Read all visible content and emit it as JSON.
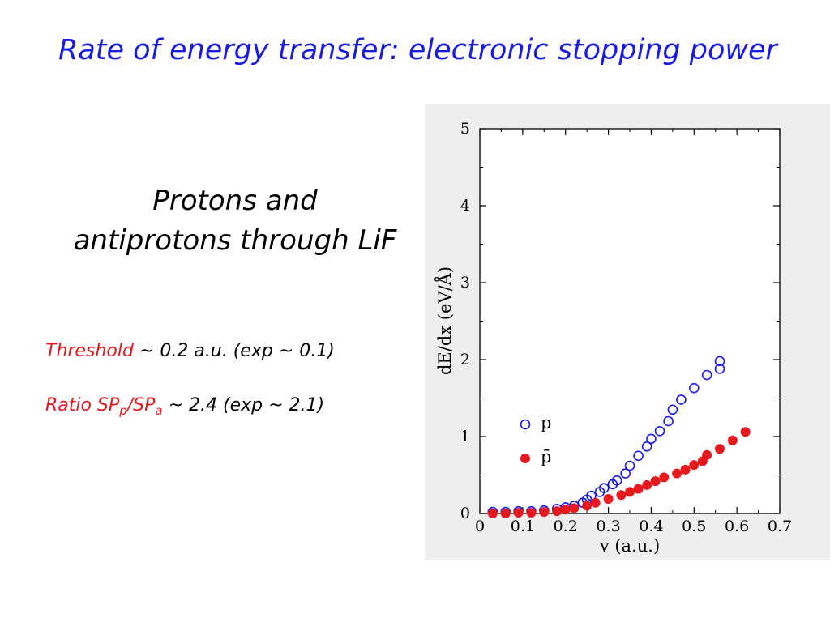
{
  "slide": {
    "title": "Rate of energy transfer: electronic stopping power",
    "subtitle_line1": "Protons and",
    "subtitle_line2": "antiprotons through LiF",
    "threshold_label": "Threshold",
    "threshold_text": " ~ 0.2 a.u. (exp ~ 0.1)",
    "ratio_label": "Ratio SP",
    "ratio_sub_p": "p",
    "ratio_slash": "/SP",
    "ratio_sub_a": "a",
    "ratio_text": " ~ 2.4 (exp ~ 2.1)"
  },
  "colors": {
    "title": "#1a1ae6",
    "highlight": "#e6191f",
    "proton": "#1a1ae6",
    "antiproton": "#e6191f",
    "panel_background": "#eeeeee"
  },
  "chart_data": {
    "type": "scatter",
    "xlabel": "v (a.u.)",
    "ylabel": "dE/dx (eV/Å)",
    "xlim": [
      0,
      0.7
    ],
    "ylim": [
      0,
      5
    ],
    "xticks": [
      0,
      0.1,
      0.2,
      0.3,
      0.4,
      0.5,
      0.6,
      0.7
    ],
    "yticks": [
      0,
      1,
      2,
      3,
      4,
      5
    ],
    "grid": false,
    "legend_position": "lower-left",
    "series": [
      {
        "name": "p",
        "marker": "open-circle",
        "color": "#1a1ae6",
        "x": [
          0.03,
          0.06,
          0.09,
          0.12,
          0.15,
          0.18,
          0.2,
          0.22,
          0.24,
          0.25,
          0.26,
          0.28,
          0.29,
          0.31,
          0.32,
          0.34,
          0.35,
          0.37,
          0.39,
          0.4,
          0.42,
          0.44,
          0.45,
          0.47,
          0.5,
          0.53,
          0.56
        ],
        "y": [
          0.02,
          0.02,
          0.03,
          0.03,
          0.04,
          0.06,
          0.08,
          0.1,
          0.14,
          0.18,
          0.23,
          0.28,
          0.33,
          0.38,
          0.43,
          0.52,
          0.62,
          0.75,
          0.87,
          0.97,
          1.07,
          1.2,
          1.35,
          1.48,
          1.63,
          1.8,
          1.88
        ],
        "extra_y_tail": [
          1.98
        ]
      },
      {
        "name": "p̄",
        "marker": "filled-circle",
        "color": "#e6191f",
        "x": [
          0.03,
          0.06,
          0.09,
          0.12,
          0.15,
          0.18,
          0.2,
          0.22,
          0.25,
          0.27,
          0.3,
          0.33,
          0.35,
          0.37,
          0.39,
          0.41,
          0.43,
          0.46,
          0.48,
          0.5,
          0.52,
          0.53,
          0.56,
          0.59,
          0.62
        ],
        "y": [
          0.0,
          0.0,
          0.01,
          0.01,
          0.02,
          0.03,
          0.05,
          0.07,
          0.1,
          0.14,
          0.19,
          0.24,
          0.28,
          0.32,
          0.37,
          0.42,
          0.47,
          0.52,
          0.57,
          0.63,
          0.68,
          0.76,
          0.84,
          0.95,
          1.06
        ],
        "extra_y_tail": []
      }
    ]
  }
}
